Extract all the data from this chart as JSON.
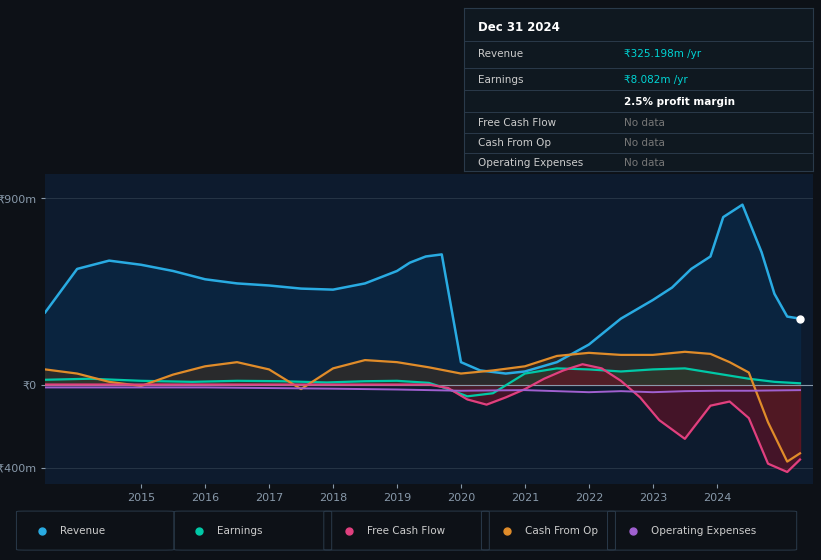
{
  "bg_color": "#0d1117",
  "plot_bg_color": "#0d1b2e",
  "yticks_labels": [
    "₹900m",
    "₹0",
    "-₹400m"
  ],
  "yticks_values": [
    900,
    0,
    -400
  ],
  "ylim": [
    -480,
    1020
  ],
  "xlim": [
    2013.5,
    2025.5
  ],
  "xticks": [
    2015,
    2016,
    2017,
    2018,
    2019,
    2020,
    2021,
    2022,
    2023,
    2024
  ],
  "legend_items": [
    {
      "label": "Revenue",
      "color": "#29abe2"
    },
    {
      "label": "Earnings",
      "color": "#00c9a7"
    },
    {
      "label": "Free Cash Flow",
      "color": "#e0407f"
    },
    {
      "label": "Cash From Op",
      "color": "#e08c2a"
    },
    {
      "label": "Operating Expenses",
      "color": "#a060d0"
    }
  ],
  "revenue_x": [
    2013.5,
    2014.0,
    2014.5,
    2015.0,
    2015.5,
    2016.0,
    2016.5,
    2017.0,
    2017.5,
    2018.0,
    2018.5,
    2019.0,
    2019.2,
    2019.45,
    2019.7,
    2020.0,
    2020.3,
    2020.7,
    2021.0,
    2021.5,
    2022.0,
    2022.5,
    2023.0,
    2023.3,
    2023.6,
    2023.9,
    2024.1,
    2024.4,
    2024.7,
    2024.9,
    2025.1,
    2025.3
  ],
  "revenue_y": [
    350,
    560,
    600,
    580,
    550,
    510,
    490,
    480,
    465,
    460,
    490,
    550,
    590,
    620,
    630,
    110,
    70,
    55,
    65,
    110,
    195,
    320,
    410,
    470,
    560,
    620,
    810,
    870,
    640,
    440,
    330,
    320
  ],
  "earnings_x": [
    2013.5,
    2014.2,
    2015.0,
    2015.8,
    2016.5,
    2017.2,
    2017.9,
    2018.5,
    2019.0,
    2019.5,
    2019.8,
    2020.1,
    2020.5,
    2021.0,
    2021.5,
    2022.0,
    2022.5,
    2023.0,
    2023.5,
    2024.0,
    2024.5,
    2024.9,
    2025.3
  ],
  "earnings_y": [
    25,
    30,
    20,
    15,
    20,
    18,
    12,
    18,
    20,
    10,
    -20,
    -55,
    -40,
    55,
    80,
    75,
    65,
    75,
    80,
    55,
    30,
    15,
    8
  ],
  "fcf_x": [
    2013.5,
    2014.5,
    2015.5,
    2016.5,
    2017.5,
    2018.5,
    2019.0,
    2019.5,
    2019.8,
    2020.1,
    2020.4,
    2020.7,
    2021.0,
    2021.3,
    2021.6,
    2021.9,
    2022.2,
    2022.5,
    2022.8,
    2023.1,
    2023.5,
    2023.9,
    2024.2,
    2024.5,
    2024.8,
    2025.1,
    2025.3
  ],
  "fcf_y": [
    2,
    2,
    2,
    2,
    2,
    2,
    2,
    2,
    -15,
    -70,
    -95,
    -60,
    -20,
    30,
    70,
    100,
    80,
    20,
    -60,
    -170,
    -260,
    -100,
    -80,
    -160,
    -380,
    -420,
    -360
  ],
  "cfo_x": [
    2013.5,
    2014.0,
    2014.5,
    2015.0,
    2015.5,
    2016.0,
    2016.5,
    2017.0,
    2017.5,
    2018.0,
    2018.5,
    2019.0,
    2019.5,
    2020.0,
    2020.5,
    2021.0,
    2021.5,
    2022.0,
    2022.5,
    2023.0,
    2023.5,
    2023.9,
    2024.2,
    2024.5,
    2024.8,
    2025.1,
    2025.3
  ],
  "cfo_y": [
    75,
    55,
    15,
    -5,
    50,
    90,
    110,
    75,
    -20,
    80,
    120,
    110,
    85,
    55,
    70,
    90,
    140,
    155,
    145,
    145,
    160,
    150,
    110,
    60,
    -180,
    -370,
    -330
  ],
  "opex_x": [
    2013.5,
    2015.0,
    2016.0,
    2017.0,
    2018.0,
    2019.0,
    2020.0,
    2021.0,
    2022.0,
    2022.5,
    2023.0,
    2023.5,
    2024.0,
    2024.5,
    2025.3
  ],
  "opex_y": [
    -12,
    -12,
    -12,
    -15,
    -18,
    -22,
    -28,
    -25,
    -35,
    -30,
    -35,
    -30,
    -28,
    -28,
    -25
  ]
}
